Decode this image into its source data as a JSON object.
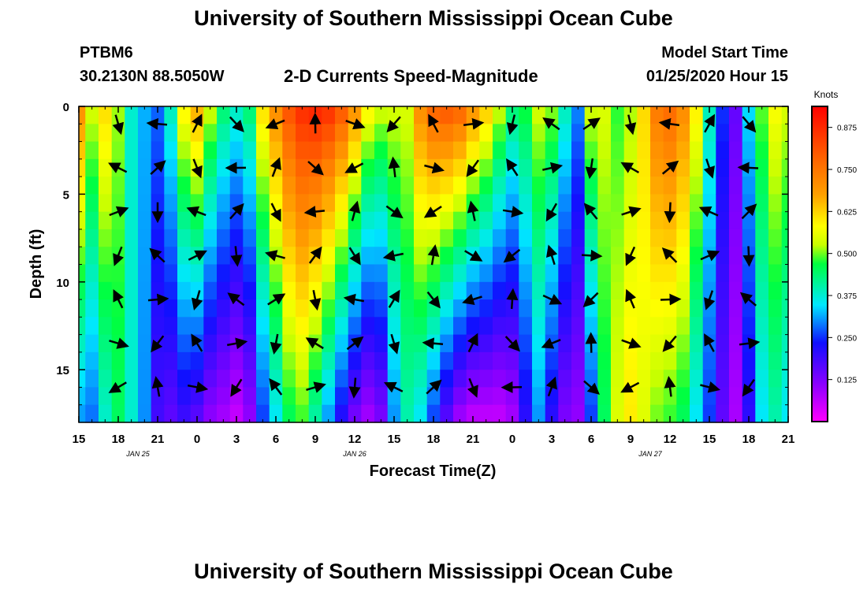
{
  "header": {
    "title_top": "University of Southern Mississippi Ocean Cube",
    "title_bottom": "University of Southern Mississippi Ocean Cube",
    "station_id": "PTBM6",
    "station_coords": "30.2130N 88.5050W",
    "subtitle": "2-D Currents Speed-Magnitude",
    "model_start_label": "Model Start Time",
    "model_start_value": "01/25/2020 Hour 15"
  },
  "chart_data": {
    "type": "heatmap",
    "title": "2-D Currents Speed-Magnitude",
    "xlabel": "Forecast Time(Z)",
    "ylabel": "Depth (ft)",
    "x_range_hours": [
      0,
      54
    ],
    "y_range_ft": [
      0,
      18
    ],
    "x_tick_labels": [
      "15",
      "18",
      "21",
      "0",
      "3",
      "6",
      "9",
      "12",
      "15",
      "18",
      "21",
      "0",
      "3",
      "6",
      "9",
      "12",
      "15",
      "18",
      "21"
    ],
    "date_labels": [
      {
        "text": "JAN 25",
        "hour": 4.5
      },
      {
        "text": "JAN 26",
        "hour": 21
      },
      {
        "text": "JAN 27",
        "hour": 43.5
      }
    ],
    "y_ticks": [
      0,
      5,
      10,
      15
    ],
    "y_tick_labels": [
      "0",
      "5",
      "10",
      "15"
    ],
    "colorbar": {
      "unit": "Knots",
      "min": 0.0,
      "max": 0.9375,
      "labels": [
        "0.875",
        "0.750",
        "0.625",
        "0.500",
        "0.375",
        "0.250",
        "0.125"
      ],
      "label_values": [
        0.875,
        0.75,
        0.625,
        0.5,
        0.375,
        0.25,
        0.125
      ]
    },
    "speed_surface_top_knots_by_hour": [
      0.72,
      0.55,
      0.62,
      0.52,
      0.38,
      0.32,
      0.28,
      0.4,
      0.6,
      0.68,
      0.55,
      0.45,
      0.4,
      0.45,
      0.62,
      0.72,
      0.82,
      0.88,
      0.9,
      0.88,
      0.82,
      0.72,
      0.6,
      0.55,
      0.55,
      0.55,
      0.72,
      0.8,
      0.82,
      0.8,
      0.72,
      0.65,
      0.55,
      0.45,
      0.48,
      0.55,
      0.52,
      0.4,
      0.3,
      0.55,
      0.55,
      0.48,
      0.52,
      0.62,
      0.75,
      0.78,
      0.72,
      0.6,
      0.4,
      0.25,
      0.15,
      0.35,
      0.5,
      0.58,
      0.55
    ],
    "speed_bottom_knots_by_hour": [
      0.3,
      0.28,
      0.38,
      0.45,
      0.38,
      0.3,
      0.18,
      0.15,
      0.18,
      0.15,
      0.1,
      0.08,
      0.05,
      0.1,
      0.25,
      0.35,
      0.45,
      0.48,
      0.4,
      0.3,
      0.2,
      0.12,
      0.08,
      0.12,
      0.3,
      0.4,
      0.35,
      0.25,
      0.15,
      0.08,
      0.05,
      0.05,
      0.05,
      0.08,
      0.2,
      0.3,
      0.2,
      0.12,
      0.1,
      0.25,
      0.45,
      0.55,
      0.6,
      0.55,
      0.5,
      0.48,
      0.45,
      0.35,
      0.25,
      0.15,
      0.08,
      0.2,
      0.35,
      0.4,
      0.35
    ]
  }
}
